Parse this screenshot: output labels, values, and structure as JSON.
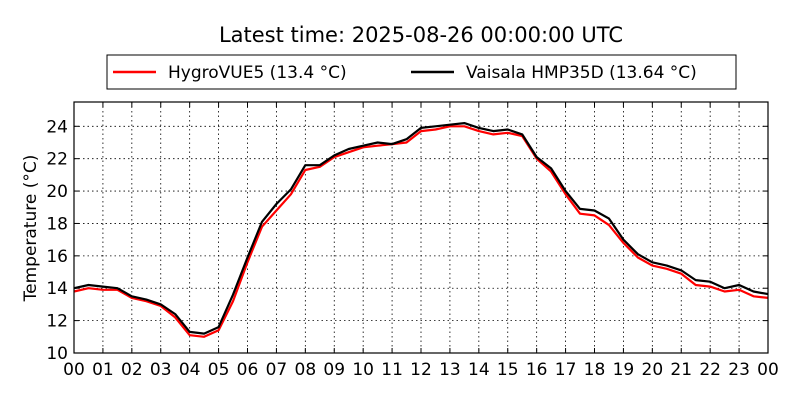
{
  "chart_data": {
    "type": "line",
    "title": "Latest time: 2025-08-26 00:00:00 UTC",
    "xlabel": "",
    "ylabel": "Temperature (°C)",
    "xlim": [
      0,
      24
    ],
    "ylim": [
      10,
      25.5
    ],
    "x_ticks": [
      0,
      1,
      2,
      3,
      4,
      5,
      6,
      7,
      8,
      9,
      10,
      11,
      12,
      13,
      14,
      15,
      16,
      17,
      18,
      19,
      20,
      21,
      22,
      23,
      24
    ],
    "x_tick_labels": [
      "00",
      "01",
      "02",
      "03",
      "04",
      "05",
      "06",
      "07",
      "08",
      "09",
      "10",
      "11",
      "12",
      "13",
      "14",
      "15",
      "16",
      "17",
      "18",
      "19",
      "20",
      "21",
      "22",
      "23",
      "00"
    ],
    "y_ticks": [
      10,
      12,
      14,
      16,
      18,
      20,
      22,
      24
    ],
    "y_tick_labels": [
      "10",
      "12",
      "14",
      "16",
      "18",
      "20",
      "22",
      "24"
    ],
    "grid": true,
    "legend_position": "top",
    "series": [
      {
        "name": "HygroVUE5 (13.4 °C)",
        "color": "#ff0000",
        "x": [
          0,
          0.5,
          1,
          1.5,
          2,
          2.5,
          3,
          3.5,
          4,
          4.5,
          5,
          5.5,
          6,
          6.5,
          7,
          7.5,
          8,
          8.5,
          9,
          9.5,
          10,
          10.5,
          11,
          11.5,
          12,
          12.5,
          13,
          13.5,
          14,
          14.5,
          15,
          15.5,
          16,
          16.5,
          17,
          17.5,
          18,
          18.5,
          19,
          19.5,
          20,
          20.5,
          21,
          21.5,
          22,
          22.5,
          23,
          23.5,
          24
        ],
        "values": [
          13.8,
          14.0,
          13.9,
          13.9,
          13.4,
          13.2,
          12.9,
          12.2,
          11.1,
          11.0,
          11.4,
          13.2,
          15.6,
          17.8,
          18.8,
          19.8,
          21.3,
          21.5,
          22.1,
          22.4,
          22.7,
          22.8,
          22.9,
          23.0,
          23.7,
          23.8,
          24.0,
          24.0,
          23.7,
          23.5,
          23.6,
          23.4,
          22.0,
          21.2,
          19.8,
          18.6,
          18.5,
          17.9,
          16.8,
          15.9,
          15.4,
          15.2,
          14.9,
          14.2,
          14.1,
          13.8,
          13.9,
          13.5,
          13.4
        ]
      },
      {
        "name": "Vaisala HMP35D (13.64 °C)",
        "color": "#000000",
        "x": [
          0,
          0.5,
          1,
          1.5,
          2,
          2.5,
          3,
          3.5,
          4,
          4.5,
          5,
          5.5,
          6,
          6.5,
          7,
          7.5,
          8,
          8.5,
          9,
          9.5,
          10,
          10.5,
          11,
          11.5,
          12,
          12.5,
          13,
          13.5,
          14,
          14.5,
          15,
          15.5,
          16,
          16.5,
          17,
          17.5,
          18,
          18.5,
          19,
          19.5,
          20,
          20.5,
          21,
          21.5,
          22,
          22.5,
          23,
          23.5,
          24
        ],
        "values": [
          14.0,
          14.2,
          14.1,
          14.0,
          13.5,
          13.3,
          13.0,
          12.4,
          11.3,
          11.2,
          11.6,
          13.6,
          15.9,
          18.1,
          19.2,
          20.1,
          21.6,
          21.6,
          22.2,
          22.6,
          22.8,
          23.0,
          22.9,
          23.2,
          23.9,
          24.0,
          24.1,
          24.2,
          23.9,
          23.7,
          23.8,
          23.5,
          22.1,
          21.4,
          20.0,
          18.9,
          18.8,
          18.3,
          17.0,
          16.1,
          15.6,
          15.4,
          15.1,
          14.5,
          14.4,
          14.0,
          14.2,
          13.8,
          13.64
        ]
      }
    ]
  }
}
